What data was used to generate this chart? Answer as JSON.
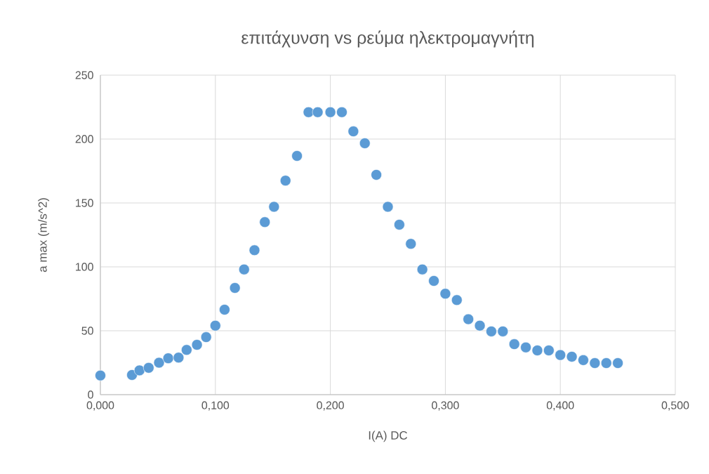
{
  "chart_data": {
    "type": "scatter",
    "title": "επιτάχυνση vs ρεύμα ηλεκτρομαγνήτη",
    "xlabel": "I(A) DC",
    "ylabel": "a max (m/s^2)",
    "x": [
      0,
      0.0275,
      0.034,
      0.042,
      0.051,
      0.059,
      0.068,
      0.075,
      0.084,
      0.092,
      0.1,
      0.108,
      0.117,
      0.125,
      0.134,
      0.143,
      0.151,
      0.161,
      0.171,
      0.181,
      0.189,
      0.2,
      0.21,
      0.22,
      0.23,
      0.24,
      0.25,
      0.26,
      0.27,
      0.28,
      0.29,
      0.3,
      0.31,
      0.32,
      0.33,
      0.34,
      0.35,
      0.36,
      0.37,
      0.38,
      0.39,
      0.4,
      0.41,
      0.42,
      0.43,
      0.44,
      0.45
    ],
    "values": [
      15,
      15.4,
      19,
      21,
      25,
      28.5,
      29,
      35,
      39,
      45,
      54,
      66.5,
      83.5,
      98,
      113,
      135,
      147,
      167.5,
      186.8,
      221,
      221,
      221,
      221,
      206,
      196.7,
      172,
      147,
      133,
      118,
      98,
      89,
      79,
      74,
      59,
      54,
      49.5,
      49.5,
      39.5,
      37,
      34.6,
      34.6,
      31,
      29.7,
      27,
      24.7,
      24.7,
      24.7
    ],
    "color": "#5b9bd5",
    "marker": "circle",
    "grid": true,
    "xlim": [
      0,
      0.5
    ],
    "ylim": [
      0,
      250
    ],
    "xticks": [
      {
        "value": 0,
        "label": "0,000"
      },
      {
        "value": 0.1,
        "label": "0,100"
      },
      {
        "value": 0.2,
        "label": "0,200"
      },
      {
        "value": 0.3,
        "label": "0,300"
      },
      {
        "value": 0.4,
        "label": "0,400"
      },
      {
        "value": 0.5,
        "label": "0,500"
      }
    ],
    "yticks": [
      0,
      50,
      100,
      150,
      200,
      250
    ]
  }
}
